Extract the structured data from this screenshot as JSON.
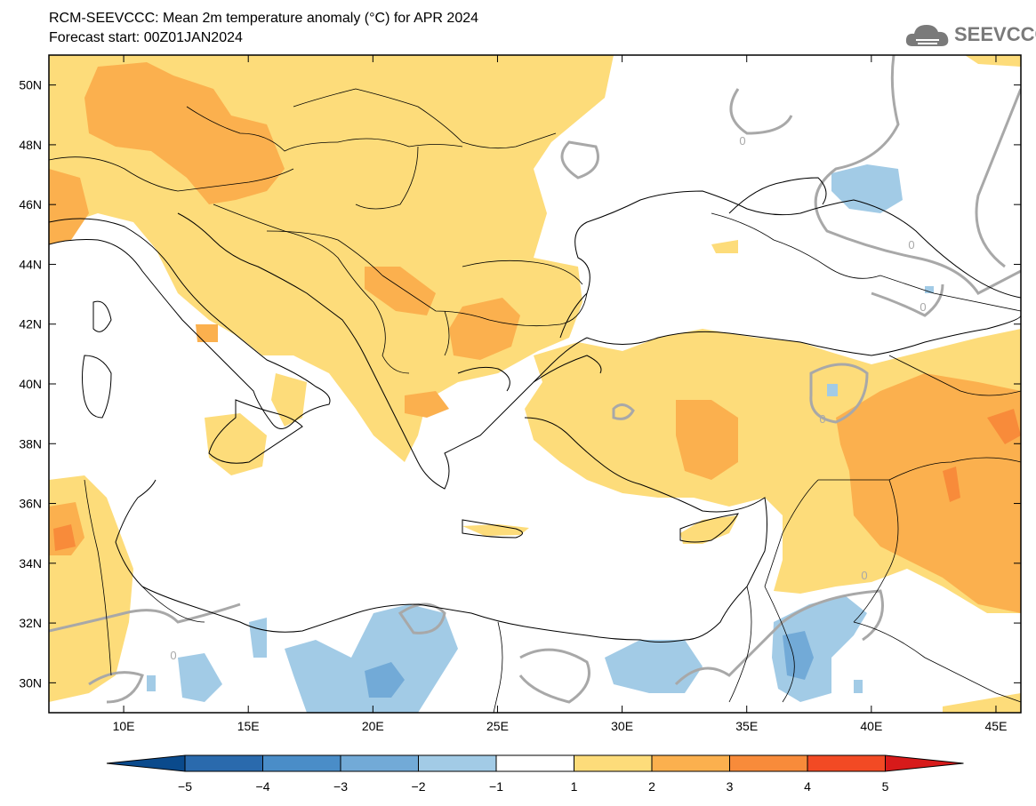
{
  "title_line1": "RCM-SEEVCCC: Mean 2m temperature anomaly (°C) for APR 2024",
  "title_line2": "Forecast start: 00Z01JAN2024",
  "logo_text": "SEEVCCC",
  "map": {
    "lon_range": [
      7,
      46
    ],
    "lat_range": [
      29,
      51
    ],
    "lon_ticks": [
      10,
      15,
      20,
      25,
      30,
      35,
      40,
      45
    ],
    "lon_tick_labels": [
      "10E",
      "15E",
      "20E",
      "25E",
      "30E",
      "35E",
      "40E",
      "45E"
    ],
    "lat_ticks": [
      30,
      32,
      34,
      36,
      38,
      40,
      42,
      44,
      46,
      48,
      50
    ],
    "lat_tick_labels": [
      "30N",
      "32N",
      "34N",
      "36N",
      "38N",
      "40N",
      "42N",
      "44N",
      "46N",
      "48N",
      "50N"
    ],
    "contour_label": "0"
  },
  "colorbar": {
    "tick_labels": [
      "−5",
      "−4",
      "−3",
      "−2",
      "−1",
      "1",
      "2",
      "3",
      "4",
      "5"
    ],
    "colors": [
      "#0a4a8c",
      "#2a6aad",
      "#4a8dc8",
      "#72aad7",
      "#a2cbe6",
      "#ffffff",
      "#fddc7a",
      "#fbb04e",
      "#f88b3a",
      "#f24a24",
      "#d71a1a"
    ]
  },
  "anomaly_colors": {
    "warm_1_2": "#fddc7a",
    "warm_2_3": "#fbb04e",
    "warm_3_4": "#f88b3a",
    "cool_1_2": "#a2cbe6",
    "cool_2_3": "#72aad7",
    "zero_contour": "#a8a8a8"
  }
}
